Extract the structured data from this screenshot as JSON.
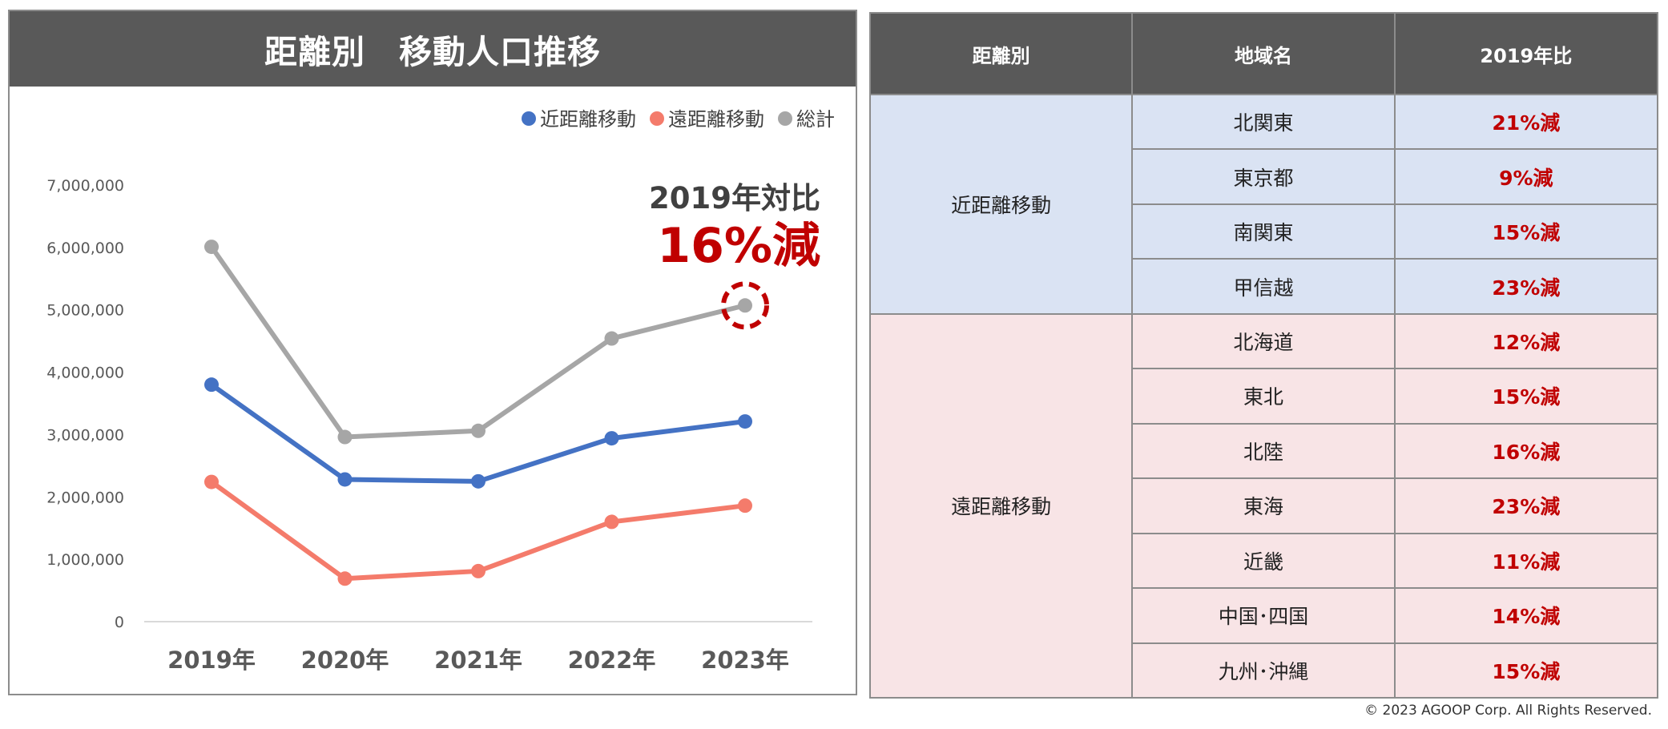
{
  "chart_data": {
    "type": "line",
    "title": "距離別　移動人口推移",
    "categories": [
      "2019年",
      "2020年",
      "2021年",
      "2022年",
      "2023年"
    ],
    "series": [
      {
        "name": "近距離移動",
        "color": "#4472c4",
        "values": [
          3800000,
          2280000,
          2250000,
          2940000,
          3210000
        ]
      },
      {
        "name": "遠距離移動",
        "color": "#f47b6b",
        "values": [
          2240000,
          690000,
          810000,
          1600000,
          1860000
        ]
      },
      {
        "name": "総計",
        "color": "#a6a6a6",
        "values": [
          6010000,
          2960000,
          3060000,
          4540000,
          5070000
        ]
      }
    ],
    "y_ticks": [
      "0",
      "1,000,000",
      "2,000,000",
      "3,000,000",
      "4,000,000",
      "5,000,000",
      "6,000,000",
      "7,000,000"
    ],
    "ylim": [
      0,
      7000000
    ],
    "grid": false,
    "legend_position": "top-right",
    "annotation": {
      "line1": "2019年対比",
      "line2": "16%減",
      "category": "2023年",
      "series": "総計"
    }
  },
  "table": {
    "headers": [
      "距離別",
      "地域名",
      "2019年比"
    ],
    "groups": [
      {
        "label": "近距離移動",
        "kind": "near",
        "rows": [
          {
            "region": "北関東",
            "change": "21%減"
          },
          {
            "region": "東京都",
            "change": "9%減"
          },
          {
            "region": "南関東",
            "change": "15%減"
          },
          {
            "region": "甲信越",
            "change": "23%減"
          }
        ]
      },
      {
        "label": "遠距離移動",
        "kind": "far",
        "rows": [
          {
            "region": "北海道",
            "change": "12%減"
          },
          {
            "region": "東北",
            "change": "15%減"
          },
          {
            "region": "北陸",
            "change": "16%減"
          },
          {
            "region": "東海",
            "change": "23%減"
          },
          {
            "region": "近畿",
            "change": "11%減"
          },
          {
            "region": "中国･四国",
            "change": "14%減"
          },
          {
            "region": "九州･沖縄",
            "change": "15%減"
          }
        ]
      }
    ]
  },
  "footer": {
    "copyright": "© 2023 AGOOP Corp. All Rights Reserved."
  },
  "colors": {
    "header_bg": "#595959",
    "near_bg": "#dae3f3",
    "far_bg": "#f8e4e6",
    "decrease_text": "#c00000"
  }
}
